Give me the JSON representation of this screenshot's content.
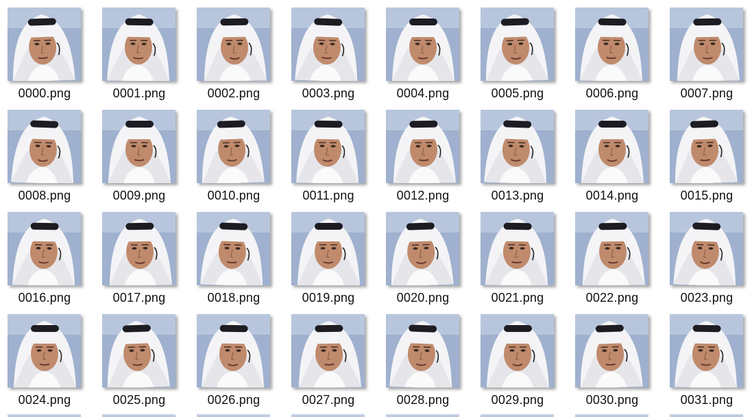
{
  "view": {
    "type": "file-explorer-thumbnail-grid"
  },
  "files": [
    {
      "name": "0000.png"
    },
    {
      "name": "0001.png"
    },
    {
      "name": "0002.png"
    },
    {
      "name": "0003.png"
    },
    {
      "name": "0004.png"
    },
    {
      "name": "0005.png"
    },
    {
      "name": "0006.png"
    },
    {
      "name": "0007.png"
    },
    {
      "name": "0008.png"
    },
    {
      "name": "0009.png"
    },
    {
      "name": "0010.png"
    },
    {
      "name": "0011.png"
    },
    {
      "name": "0012.png"
    },
    {
      "name": "0013.png"
    },
    {
      "name": "0014.png"
    },
    {
      "name": "0015.png"
    },
    {
      "name": "0016.png"
    },
    {
      "name": "0017.png"
    },
    {
      "name": "0018.png"
    },
    {
      "name": "0019.png"
    },
    {
      "name": "0020.png"
    },
    {
      "name": "0021.png"
    },
    {
      "name": "0022.png"
    },
    {
      "name": "0023.png"
    },
    {
      "name": "0024.png"
    },
    {
      "name": "0025.png"
    },
    {
      "name": "0026.png"
    },
    {
      "name": "0027.png"
    },
    {
      "name": "0028.png"
    },
    {
      "name": "0029.png"
    },
    {
      "name": "0030.png"
    },
    {
      "name": "0031.png"
    }
  ],
  "colors": {
    "background": "#ffffff",
    "label_text": "#111111",
    "headscarf": "#f4f4f6",
    "headband": "#1c1c22",
    "skin": "#c08a6c",
    "studio_bg": "#9fb1cf"
  }
}
